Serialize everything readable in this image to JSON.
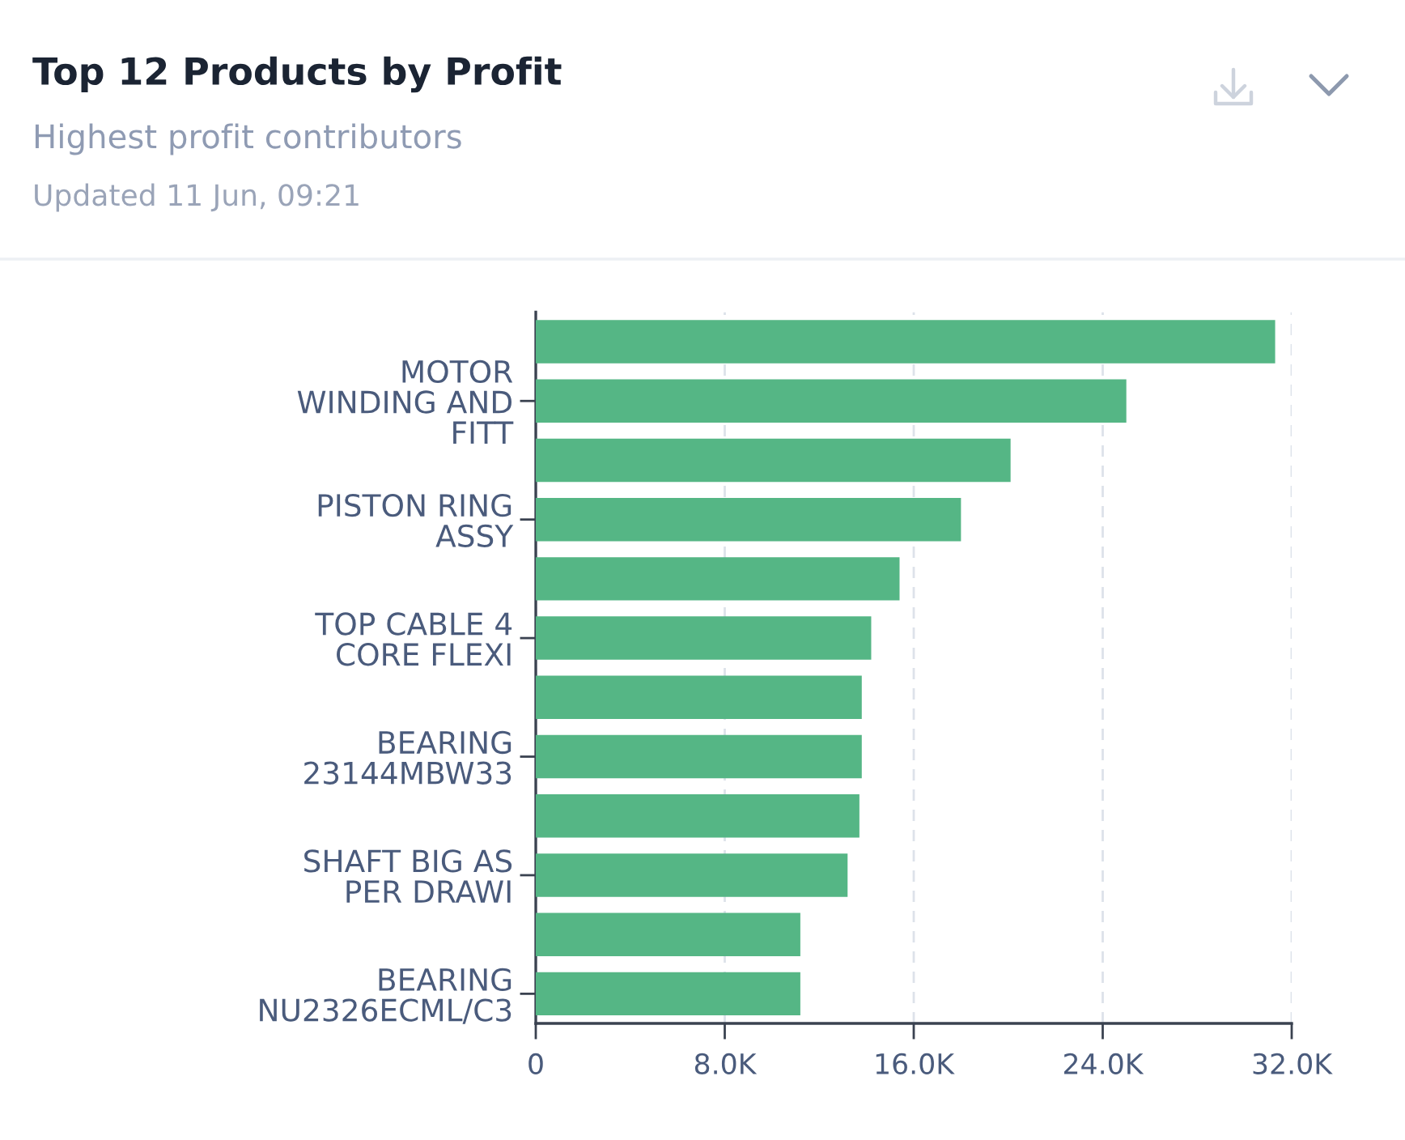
{
  "chart_data": {
    "type": "bar",
    "orientation": "horizontal",
    "title": "Top 12 Products by Profit",
    "subtitle": "Highest profit contributors",
    "annotations": [
      "Updated 11 Jun, 09:21"
    ],
    "categories": [
      null,
      "MOTOR\nWINDING AND\nFITT",
      null,
      "PISTON RING\nASSY",
      null,
      "TOP CABLE 4\nCORE FLEXI",
      null,
      "BEARING\n23144MBW33",
      null,
      "SHAFT BIG AS\nPER DRAWI",
      null,
      "BEARING\nNU2326ECML/C3"
    ],
    "values": [
      31300,
      25000,
      20100,
      18000,
      15400,
      14200,
      13800,
      13800,
      13700,
      13200,
      11200,
      11200
    ],
    "color": "#55b685",
    "xlim": [
      0,
      32000
    ],
    "xticks": [
      0,
      {
        "value": 8000,
        "label": "8.0K"
      },
      {
        "value": 16000,
        "label": "16.0K"
      },
      {
        "value": 24000,
        "label": "24.0K"
      },
      {
        "value": 32000,
        "label": "32.0K"
      }
    ],
    "grid": "x"
  }
}
